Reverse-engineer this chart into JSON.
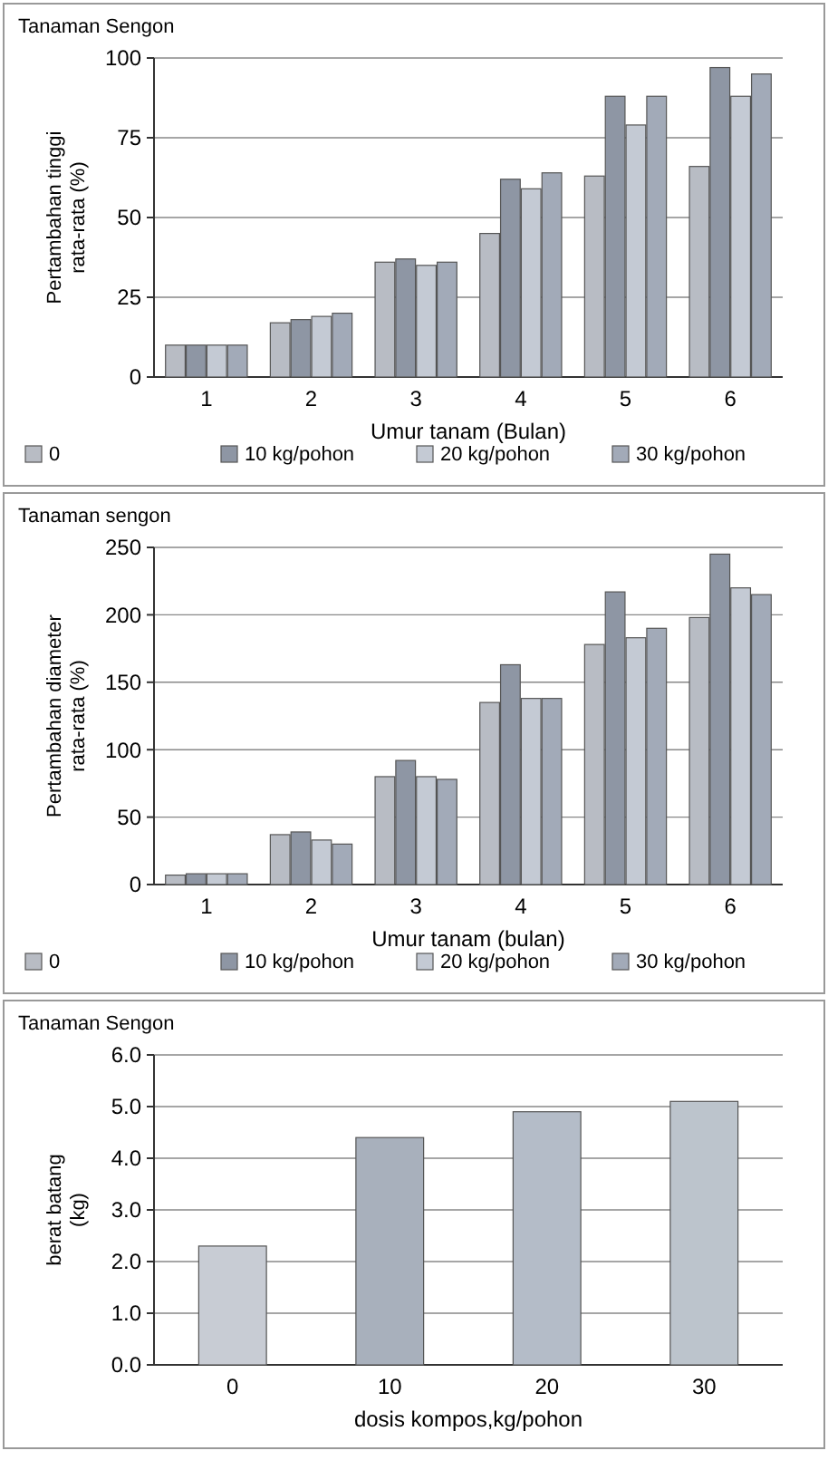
{
  "chart_data": [
    {
      "type": "bar",
      "title": "Tanaman Sengon",
      "xlabel": "Umur tanam (Bulan)",
      "ylabel": "Pertambahan tinggi rata-rata (%)",
      "categories": [
        "1",
        "2",
        "3",
        "4",
        "5",
        "6"
      ],
      "ylim": [
        0,
        100
      ],
      "yticks": [
        0,
        25,
        50,
        75,
        100
      ],
      "grid": "y",
      "legend": "bottom",
      "series": [
        {
          "name": "0",
          "color": "#b8bcc4",
          "values": [
            10,
            17,
            36,
            45,
            63,
            66
          ]
        },
        {
          "name": "10 kg/pohon",
          "color": "#8e96a4",
          "values": [
            10,
            18,
            37,
            62,
            88,
            97
          ]
        },
        {
          "name": "20 kg/pohon",
          "color": "#c4cad4",
          "values": [
            10,
            19,
            35,
            59,
            79,
            88
          ]
        },
        {
          "name": "30 kg/pohon",
          "color": "#a2aab8",
          "values": [
            10,
            20,
            36,
            64,
            88,
            95
          ]
        }
      ]
    },
    {
      "type": "bar",
      "title": "Tanaman sengon",
      "xlabel": "Umur tanam (bulan)",
      "ylabel": "Pertambahan diameter rata-rata (%)",
      "categories": [
        "1",
        "2",
        "3",
        "4",
        "5",
        "6"
      ],
      "ylim": [
        0,
        250
      ],
      "yticks": [
        0,
        50,
        100,
        150,
        200,
        250
      ],
      "grid": "y",
      "legend": "bottom",
      "series": [
        {
          "name": "0",
          "color": "#b8bcc4",
          "values": [
            7,
            37,
            80,
            135,
            178,
            198
          ]
        },
        {
          "name": "10 kg/pohon",
          "color": "#8e96a4",
          "values": [
            8,
            39,
            92,
            163,
            217,
            245
          ]
        },
        {
          "name": "20 kg/pohon",
          "color": "#c4cad4",
          "values": [
            8,
            33,
            80,
            138,
            183,
            220
          ]
        },
        {
          "name": "30 kg/pohon",
          "color": "#a2aab8",
          "values": [
            8,
            30,
            78,
            138,
            190,
            215
          ]
        }
      ]
    },
    {
      "type": "bar",
      "title": "Tanaman Sengon",
      "xlabel": "dosis kompos,kg/pohon",
      "ylabel": "berat batang (kg)",
      "categories": [
        "0",
        "10",
        "20",
        "30"
      ],
      "ylim": [
        0,
        6
      ],
      "yticks": [
        {
          "value": 0,
          "label": "0.0"
        },
        {
          "value": 1,
          "label": "1.0"
        },
        {
          "value": 2,
          "label": "2.0"
        },
        {
          "value": 3,
          "label": "3.0"
        },
        {
          "value": 4,
          "label": "4.0"
        },
        {
          "value": 5,
          "label": "5.0"
        },
        {
          "value": 6,
          "label": "6.0"
        }
      ],
      "grid": "y",
      "series": [
        {
          "colors": [
            "#c8ccd4",
            "#a8b0bc",
            "#b4bcc8",
            "#bcc4cc"
          ],
          "values": [
            2.3,
            4.4,
            4.9,
            5.1
          ]
        }
      ]
    }
  ]
}
